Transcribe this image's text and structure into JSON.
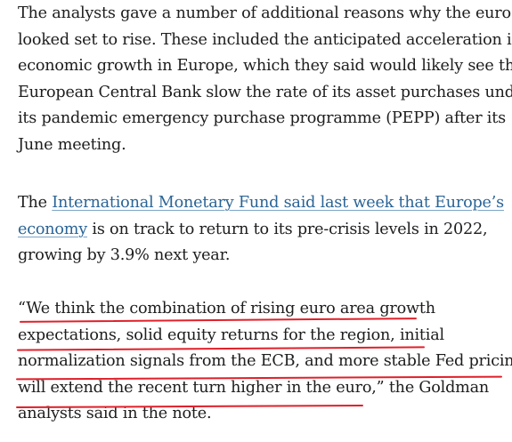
{
  "paragraph_1": {
    "lines": [
      "The analysts gave a number of additional reasons why the euro",
      "looked set to rise. These included the anticipated acceleration in",
      "economic growth in Europe, which they said would likely see the",
      "European Central Bank slow the rate of its asset purchases under",
      "its pandemic emergency purchase programme (PEPP) after its",
      "June meeting."
    ]
  },
  "paragraph_2": {
    "lead": "The ",
    "link_line_1": "International Monetary Fund said last week that Europe’s",
    "link_line_2": "economy",
    "after_link": " is on track to return to its pre-crisis levels in 2022,",
    "line_3": "growing by 3.9% next year."
  },
  "paragraph_3": {
    "lines": [
      "“We think the combination of rising euro area growth",
      "expectations, solid equity returns for the region, initial",
      "normalization signals from the ECB, and more stable Fed pricing"
    ],
    "line_4_quote": "will extend the recent turn higher in the euro,”",
    "line_4_rest": " the Goldman",
    "line_5": "analysts said in the note."
  },
  "colors": {
    "text": "#1d1d1d",
    "link": "#2a6496",
    "highlight_underline": "#e0202a"
  }
}
